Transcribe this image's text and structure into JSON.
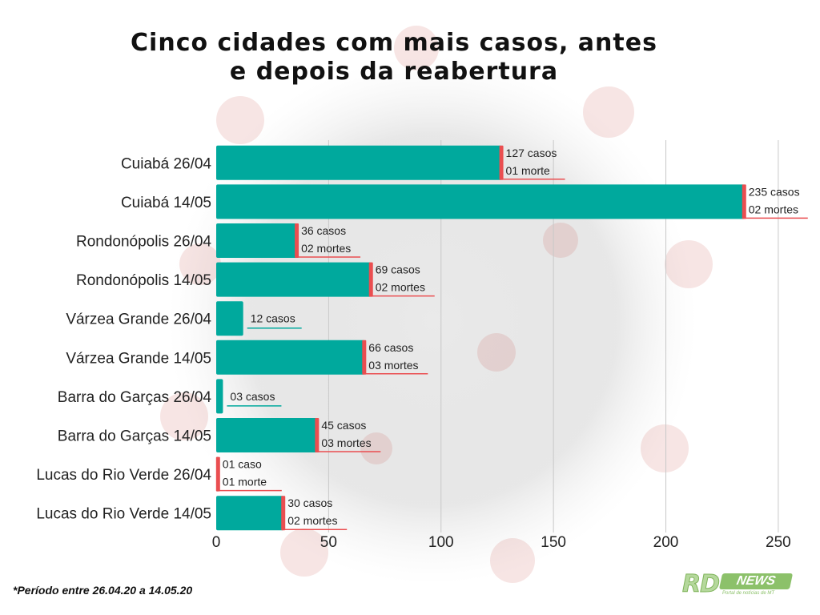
{
  "title_line1": "Cinco cidades com mais casos, antes",
  "title_line2": "e depois da reabertura",
  "footnote": "*Período entre 26.04.20 a 14.05.20",
  "logo": {
    "main": "RD",
    "news": "NEWS",
    "tagline": "Portal de notícias de MT"
  },
  "colors": {
    "bar": "#00a99d",
    "accent": "#ea4e50",
    "grid": "#c8c8c8",
    "text": "#222222"
  },
  "chart_data": {
    "type": "bar",
    "orientation": "horizontal",
    "categories": [
      "Cuiabá 26/04",
      "Cuiabá 14/05",
      "Rondonópolis 26/04",
      "Rondonópolis 14/05",
      "Várzea Grande 26/04",
      "Várzea Grande 14/05",
      "Barra do Garças 26/04",
      "Barra do Garças 14/05",
      "Lucas do Rio Verde 26/04",
      "Lucas do Rio Verde 14/05"
    ],
    "values": [
      127,
      235,
      36,
      69,
      12,
      66,
      3,
      45,
      1,
      30
    ],
    "deaths": [
      1,
      2,
      2,
      2,
      0,
      3,
      0,
      3,
      1,
      2
    ],
    "labels": [
      [
        "127 casos",
        "01 morte"
      ],
      [
        "235 casos",
        "02 mortes"
      ],
      [
        "36 casos",
        "02 mortes"
      ],
      [
        "69 casos",
        "02 mortes"
      ],
      [
        "12 casos"
      ],
      [
        "66 casos",
        "03 mortes"
      ],
      [
        "03 casos"
      ],
      [
        "45 casos",
        "03 mortes"
      ],
      [
        "01 caso",
        "01 morte"
      ],
      [
        "30 casos",
        "02 mortes"
      ]
    ],
    "xlim": [
      0,
      265
    ],
    "xticks": [
      0,
      50,
      100,
      150,
      200,
      250
    ],
    "grid": true
  }
}
